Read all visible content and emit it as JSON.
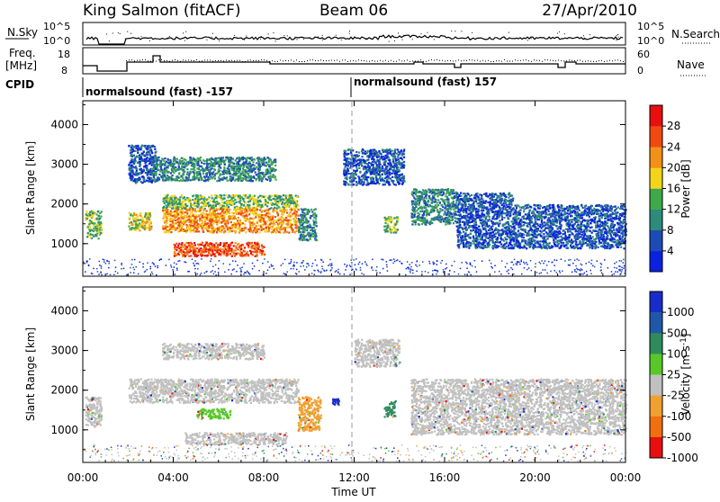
{
  "header": {
    "station": "King Salmon (fitACF)",
    "beam": "Beam 06",
    "date": "27/Apr/2010"
  },
  "top_panels": {
    "nsky_label": "N.Sky",
    "nsearch_label": "N.Search",
    "nsky_ticks": [
      "10^5",
      "10^0"
    ],
    "nsky_right_ticks": [
      "10^5",
      "10^0"
    ],
    "freq_label_1": "Freq.",
    "freq_label_2": "[MHz]",
    "freq_ticks": [
      "18",
      "8"
    ],
    "nave_label": "Nave",
    "nave_ticks": [
      "60",
      "0"
    ],
    "cpid_label": "CPID",
    "cpid_segments": [
      "normalsound (fast) -157",
      "normalsound (fast) 157"
    ]
  },
  "chart_data": [
    {
      "type": "heatmap",
      "title": "",
      "xlabel": "",
      "ylabel": "Slant Range [km]",
      "xlim": [
        0,
        24
      ],
      "ylim": [
        180,
        4600
      ],
      "y_ticks": [
        "1000",
        "2000",
        "3000",
        "4000"
      ],
      "colorbar_label": "Power [dB]",
      "colorbar_ticks": [
        "4",
        "8",
        "12",
        "16",
        "20",
        "24",
        "28"
      ],
      "colors": [
        "#0a22e0",
        "#1e4ab8",
        "#2e8a7a",
        "#3fa84a",
        "#f2d51a",
        "#f29018",
        "#f04a10",
        "#e80f0f"
      ],
      "regions": [
        {
          "t": [
            0.1,
            0.8
          ],
          "r": [
            1150,
            1850
          ],
          "level": 3
        },
        {
          "t": [
            2.0,
            3.0
          ],
          "r": [
            1350,
            1800
          ],
          "level": 4
        },
        {
          "t": [
            2.0,
            3.2
          ],
          "r": [
            2550,
            3500
          ],
          "level": 1
        },
        {
          "t": [
            3.0,
            8.5
          ],
          "r": [
            2600,
            3200
          ],
          "level": 2
        },
        {
          "t": [
            3.5,
            9.5
          ],
          "r": [
            1900,
            2250
          ],
          "level": 3
        },
        {
          "t": [
            3.5,
            9.5
          ],
          "r": [
            1300,
            1900
          ],
          "level": 5
        },
        {
          "t": [
            4.0,
            8.0
          ],
          "r": [
            700,
            1050
          ],
          "level": 6
        },
        {
          "t": [
            9.5,
            10.3
          ],
          "r": [
            1100,
            1900
          ],
          "level": 2
        },
        {
          "t": [
            11.5,
            14.2
          ],
          "r": [
            2500,
            3400
          ],
          "level": 1
        },
        {
          "t": [
            13.3,
            13.9
          ],
          "r": [
            1300,
            1700
          ],
          "level": 3
        },
        {
          "t": [
            14.5,
            16.5
          ],
          "r": [
            1500,
            2400
          ],
          "level": 2
        },
        {
          "t": [
            16.5,
            19.0
          ],
          "r": [
            900,
            2300
          ],
          "level": 1
        },
        {
          "t": [
            19.0,
            24.0
          ],
          "r": [
            900,
            2000
          ],
          "level": 1
        }
      ]
    },
    {
      "type": "heatmap",
      "title": "",
      "xlabel": "Time UT",
      "ylabel": "Slant Range [km]",
      "xlim": [
        0,
        24
      ],
      "ylim": [
        180,
        4600
      ],
      "x_ticks": [
        "00:00",
        "04:00",
        "08:00",
        "12:00",
        "16:00",
        "20:00",
        "00:00"
      ],
      "y_ticks": [
        "1000",
        "2000",
        "3000",
        "4000"
      ],
      "colorbar_label": "Velocity [m s^-1]",
      "colorbar_ticks": [
        "1000",
        "500",
        "100",
        "25",
        "-25",
        "-100",
        "-500",
        "-1000"
      ],
      "colors": [
        "#1a2cc8",
        "#1f58a8",
        "#2e8c5c",
        "#58c828",
        "#c0c0c0",
        "#f0a030",
        "#f07010",
        "#e80f0f"
      ],
      "regions": [
        {
          "t": [
            0.1,
            0.8
          ],
          "r": [
            1100,
            1850
          ],
          "v": "gray"
        },
        {
          "t": [
            2.0,
            9.5
          ],
          "r": [
            1700,
            2300
          ],
          "v": "gray"
        },
        {
          "t": [
            3.5,
            8.0
          ],
          "r": [
            2800,
            3200
          ],
          "v": "gray"
        },
        {
          "t": [
            5.0,
            6.5
          ],
          "r": [
            1300,
            1550
          ],
          "v": "green"
        },
        {
          "t": [
            4.5,
            9.0
          ],
          "r": [
            650,
            950
          ],
          "v": "gray"
        },
        {
          "t": [
            9.5,
            10.5
          ],
          "r": [
            1000,
            1850
          ],
          "v": "orange"
        },
        {
          "t": [
            11.0,
            11.3
          ],
          "r": [
            1650,
            1800
          ],
          "v": "blue"
        },
        {
          "t": [
            12.0,
            14.0
          ],
          "r": [
            2600,
            3300
          ],
          "v": "gray"
        },
        {
          "t": [
            13.3,
            13.8
          ],
          "r": [
            1350,
            1750
          ],
          "v": "darkgreen"
        },
        {
          "t": [
            14.5,
            24.0
          ],
          "r": [
            900,
            2300
          ],
          "v": "gray"
        }
      ]
    }
  ]
}
